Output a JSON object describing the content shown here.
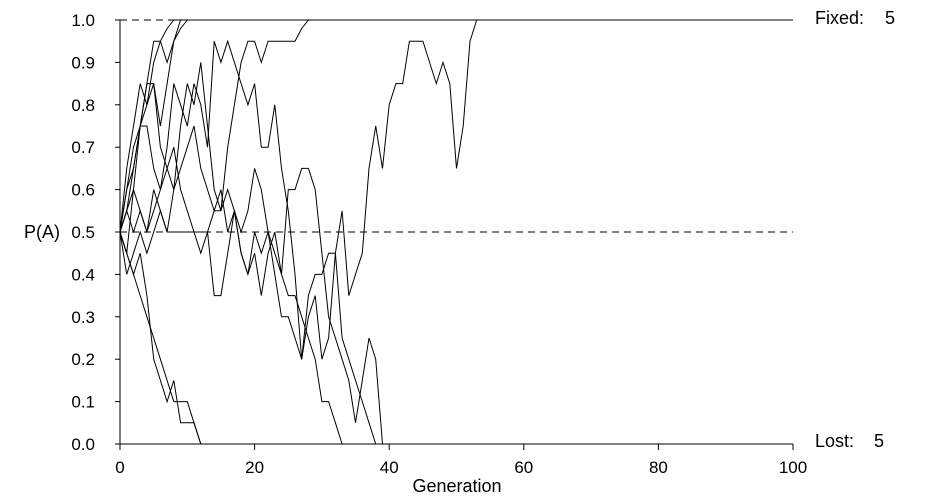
{
  "chart_data": {
    "type": "line",
    "title": "",
    "xlabel": "Generation",
    "ylabel": "P(A)",
    "xlim": [
      0,
      100
    ],
    "ylim": [
      0,
      1
    ],
    "x_ticks": [
      "0",
      "20",
      "40",
      "60",
      "80",
      "100"
    ],
    "y_ticks": [
      "0.0",
      "0.1",
      "0.2",
      "0.3",
      "0.4",
      "0.5",
      "0.6",
      "0.7",
      "0.8",
      "0.9",
      "1.0"
    ],
    "reference_lines": [
      0.0,
      0.5,
      1.0
    ],
    "fixed_label": "Fixed:",
    "fixed_count": "5",
    "lost_label": "Lost:",
    "lost_count": "5",
    "line_color": "#000000",
    "series": [
      {
        "x": [
          0,
          1,
          2,
          3,
          4,
          5,
          6,
          7,
          8
        ],
        "y": [
          0.5,
          0.65,
          0.75,
          0.85,
          0.8,
          0.9,
          0.95,
          0.98,
          1.0
        ]
      },
      {
        "x": [
          0,
          1,
          2,
          3,
          4,
          5,
          6,
          7,
          8,
          9
        ],
        "y": [
          0.5,
          0.6,
          0.7,
          0.75,
          0.85,
          0.95,
          0.95,
          0.9,
          0.95,
          1.0
        ]
      },
      {
        "x": [
          0,
          1,
          2,
          3,
          4,
          5,
          6,
          7,
          8,
          9,
          10
        ],
        "y": [
          0.5,
          0.45,
          0.6,
          0.75,
          0.85,
          0.85,
          0.75,
          0.85,
          0.95,
          0.98,
          1.0
        ]
      },
      {
        "x": [
          0,
          1,
          2,
          3,
          4,
          5,
          6,
          7,
          8,
          9,
          10,
          11,
          12,
          13,
          14,
          15,
          16,
          17,
          18,
          19,
          20,
          21,
          22,
          23,
          24,
          25,
          26,
          27,
          28
        ],
        "y": [
          0.5,
          0.55,
          0.65,
          0.75,
          0.8,
          0.85,
          0.7,
          0.65,
          0.6,
          0.75,
          0.85,
          0.8,
          0.9,
          0.75,
          0.6,
          0.55,
          0.7,
          0.8,
          0.9,
          0.95,
          0.95,
          0.9,
          0.95,
          0.95,
          0.95,
          0.95,
          0.95,
          0.98,
          1.0
        ]
      },
      {
        "x": [
          0,
          1,
          2,
          3,
          4,
          5,
          6,
          7,
          8,
          9,
          10,
          11,
          12,
          13,
          14,
          15,
          16,
          17,
          18,
          19,
          20,
          21,
          22,
          23,
          24,
          25,
          26,
          27,
          28,
          29,
          30,
          31,
          32,
          33,
          34,
          35,
          36,
          37,
          38,
          39,
          40,
          41,
          42,
          43,
          44,
          45,
          46,
          47,
          48,
          49,
          50,
          51,
          52,
          53
        ],
        "y": [
          0.5,
          0.6,
          0.65,
          0.75,
          0.75,
          0.65,
          0.6,
          0.7,
          0.85,
          0.8,
          0.75,
          0.85,
          0.8,
          0.7,
          0.95,
          0.9,
          0.95,
          0.9,
          0.85,
          0.8,
          0.85,
          0.7,
          0.7,
          0.8,
          0.65,
          0.55,
          0.4,
          0.2,
          0.3,
          0.35,
          0.2,
          0.25,
          0.45,
          0.55,
          0.35,
          0.4,
          0.45,
          0.65,
          0.75,
          0.65,
          0.8,
          0.85,
          0.85,
          0.95,
          0.95,
          0.95,
          0.9,
          0.85,
          0.9,
          0.85,
          0.65,
          0.75,
          0.95,
          1.0
        ]
      },
      {
        "x": [
          0,
          1,
          2,
          3,
          4,
          5,
          6,
          7,
          8,
          9,
          10,
          11,
          12
        ],
        "y": [
          0.5,
          0.45,
          0.4,
          0.45,
          0.35,
          0.2,
          0.15,
          0.1,
          0.15,
          0.05,
          0.05,
          0.05,
          0.0
        ]
      },
      {
        "x": [
          0,
          1,
          2,
          3,
          4,
          5,
          6,
          7,
          8,
          9,
          10,
          11,
          12
        ],
        "y": [
          0.5,
          0.45,
          0.4,
          0.35,
          0.3,
          0.25,
          0.2,
          0.15,
          0.1,
          0.1,
          0.1,
          0.05,
          0.0
        ]
      },
      {
        "x": [
          0,
          1,
          2,
          3,
          4,
          5,
          6,
          7,
          8,
          9,
          10,
          11,
          12,
          13,
          14,
          15,
          16,
          17,
          18,
          19,
          20,
          21,
          22,
          23,
          24,
          25,
          26,
          27,
          28,
          29,
          30,
          31,
          32,
          33
        ],
        "y": [
          0.5,
          0.55,
          0.6,
          0.55,
          0.5,
          0.6,
          0.55,
          0.5,
          0.6,
          0.65,
          0.7,
          0.75,
          0.65,
          0.6,
          0.55,
          0.6,
          0.5,
          0.55,
          0.45,
          0.4,
          0.5,
          0.45,
          0.5,
          0.45,
          0.4,
          0.35,
          0.35,
          0.3,
          0.25,
          0.2,
          0.1,
          0.1,
          0.05,
          0.0
        ]
      },
      {
        "x": [
          0,
          1,
          2,
          3,
          4,
          5,
          6,
          7,
          8,
          9,
          10,
          11,
          12,
          13,
          14,
          15,
          16,
          17,
          18,
          19,
          20,
          21,
          22,
          23,
          24,
          25,
          26,
          27,
          28,
          29,
          30,
          31,
          32,
          33,
          34,
          35,
          36,
          37,
          38
        ],
        "y": [
          0.5,
          0.55,
          0.5,
          0.55,
          0.5,
          0.55,
          0.6,
          0.65,
          0.7,
          0.6,
          0.55,
          0.5,
          0.45,
          0.5,
          0.55,
          0.55,
          0.6,
          0.55,
          0.5,
          0.55,
          0.65,
          0.6,
          0.5,
          0.4,
          0.3,
          0.3,
          0.25,
          0.2,
          0.35,
          0.4,
          0.4,
          0.45,
          0.45,
          0.25,
          0.2,
          0.15,
          0.1,
          0.05,
          0.0
        ]
      },
      {
        "x": [
          0,
          1,
          2,
          3,
          4,
          5,
          6,
          7,
          8,
          9,
          10,
          11,
          12,
          13,
          14,
          15,
          16,
          17,
          18,
          19,
          20,
          21,
          22,
          23,
          24,
          25,
          26,
          27,
          28,
          29,
          30,
          31,
          32,
          33,
          34,
          35,
          36,
          37,
          38,
          39
        ],
        "y": [
          0.5,
          0.4,
          0.45,
          0.5,
          0.45,
          0.5,
          0.55,
          0.5,
          0.5,
          0.5,
          0.5,
          0.5,
          0.5,
          0.5,
          0.35,
          0.35,
          0.45,
          0.55,
          0.45,
          0.4,
          0.45,
          0.35,
          0.45,
          0.5,
          0.4,
          0.6,
          0.6,
          0.65,
          0.65,
          0.6,
          0.45,
          0.3,
          0.25,
          0.2,
          0.15,
          0.05,
          0.15,
          0.25,
          0.2,
          0.0
        ]
      }
    ]
  }
}
